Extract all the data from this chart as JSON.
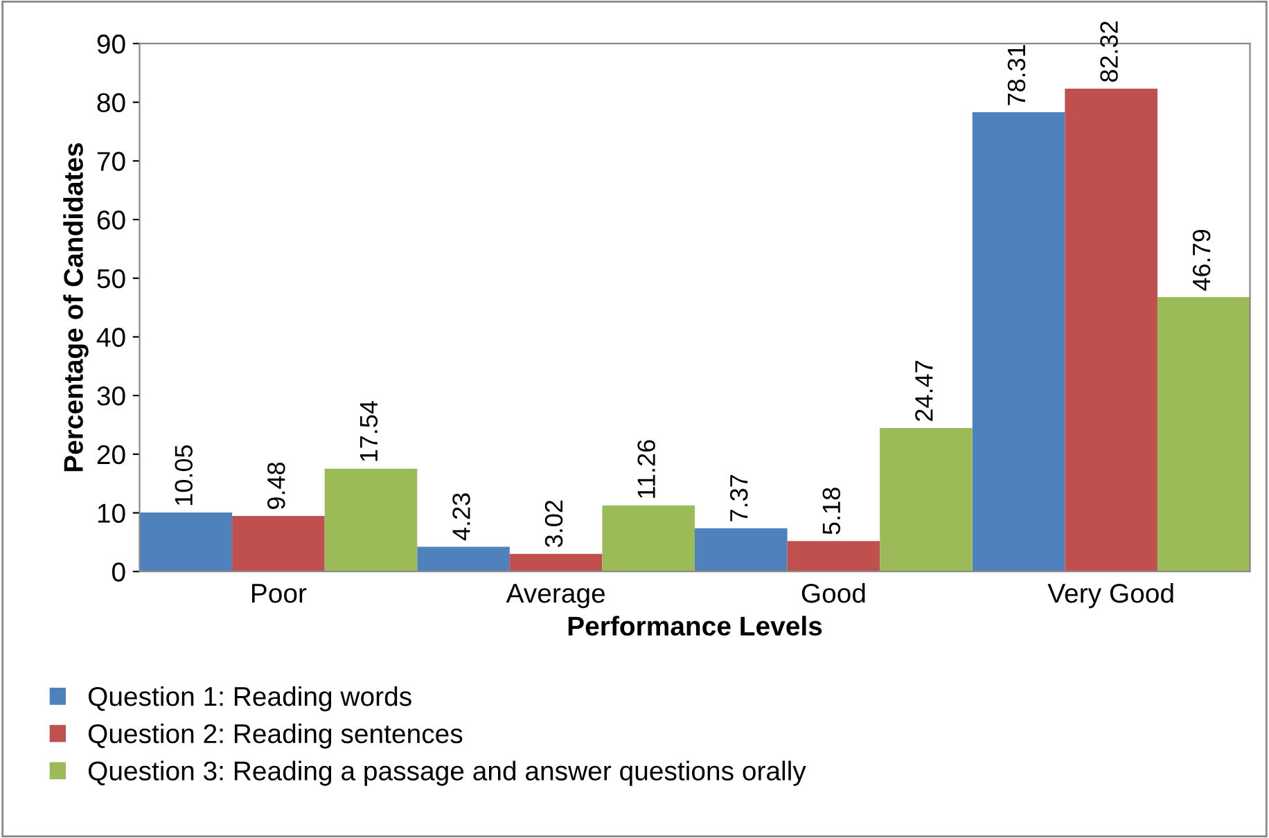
{
  "chart_data": {
    "type": "bar",
    "xlabel": "Performance Levels",
    "ylabel": "Percentage of Candidates",
    "categories": [
      "Poor",
      "Average",
      "Good",
      "Very Good"
    ],
    "series": [
      {
        "name": "Question 1: Reading words",
        "color": "#4f81bd",
        "values": [
          10.05,
          4.23,
          7.37,
          78.31
        ]
      },
      {
        "name": "Question 2: Reading sentences",
        "color": "#c0504d",
        "values": [
          9.48,
          3.02,
          5.18,
          82.32
        ]
      },
      {
        "name": "Question 3: Reading a passage and answer questions orally",
        "color": "#9bbb59",
        "values": [
          17.54,
          11.26,
          24.47,
          46.79
        ]
      }
    ],
    "ylim": [
      0,
      90
    ],
    "yticks": [
      0,
      10,
      20,
      30,
      40,
      50,
      60,
      70,
      80,
      90
    ],
    "data_labels": true,
    "grid": false,
    "legend": "bottom"
  }
}
